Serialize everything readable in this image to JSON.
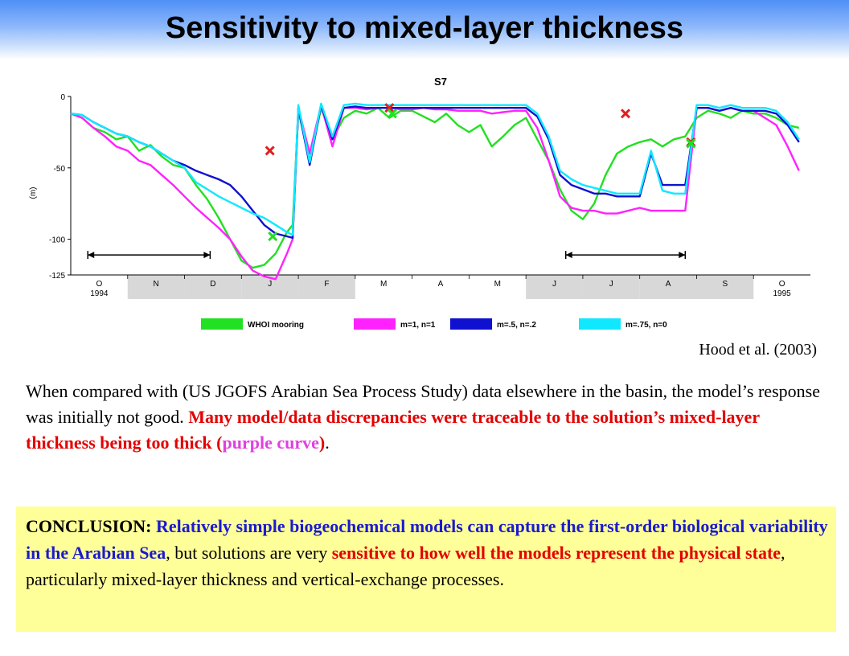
{
  "title": "Sensitivity to mixed-layer thickness",
  "citation": "Hood et al. (2003)",
  "paragraph": {
    "part1": "When compared with (US JGOFS Arabian Sea Process Study) data elsewhere in the basin, the model’s response was initially not good.  ",
    "part2": "Many model/data discrepancies were traceable to the solution’s mixed-layer thickness being too thick (",
    "part3": "purple curve",
    "part4": ")",
    "part5": "."
  },
  "conclusion": {
    "label": "CONCLUSION: ",
    "part1": "Relatively simple biogeochemical models can capture the first-order biological variability in the Arabian Sea",
    "part2": ", but solutions are very ",
    "part3": "sensitive to how well the models represent the physical state",
    "part4": ", particularly mixed-layer thickness and vertical-exchange processes."
  },
  "colors": {
    "whoi": "#22e022",
    "m1n1": "#ff22ff",
    "m05n02": "#1010d0",
    "m075n0": "#10e8ff",
    "markers": "#e02020",
    "emphasis_red": "#e30000",
    "emphasis_blue": "#1a1ad0",
    "conclusion_bg": "#ffff99"
  },
  "chart_data": {
    "type": "line",
    "title": "S7",
    "ylabel": "(m)",
    "ylim": [
      -125,
      0
    ],
    "yticks": [
      0,
      -50,
      -100,
      -125
    ],
    "ytick_labels": [
      "0",
      "-50",
      "-100",
      "-125"
    ],
    "x_axis": {
      "months": [
        "O",
        "N",
        "D",
        "J",
        "F",
        "M",
        "A",
        "M",
        "J",
        "J",
        "A",
        "S",
        "O"
      ],
      "shaded": [
        false,
        true,
        true,
        true,
        true,
        false,
        false,
        false,
        true,
        true,
        true,
        true,
        false
      ],
      "year_labels": [
        {
          "month_index": 0,
          "text": "1994"
        },
        {
          "month_index": 12,
          "text": "1995"
        }
      ]
    },
    "x": [
      0,
      0.2,
      0.4,
      0.6,
      0.8,
      1.0,
      1.2,
      1.4,
      1.6,
      1.8,
      2.0,
      2.2,
      2.4,
      2.6,
      2.8,
      3.0,
      3.2,
      3.4,
      3.6,
      3.8,
      3.9,
      4.0,
      4.2,
      4.4,
      4.6,
      4.8,
      5.0,
      5.2,
      5.4,
      5.6,
      5.8,
      6.0,
      6.2,
      6.4,
      6.6,
      6.8,
      7.0,
      7.2,
      7.4,
      7.6,
      7.8,
      8.0,
      8.2,
      8.4,
      8.6,
      8.8,
      9.0,
      9.2,
      9.4,
      9.6,
      9.8,
      10.0,
      10.2,
      10.4,
      10.6,
      10.8,
      11.0,
      11.2,
      11.4,
      11.6,
      11.8,
      12.0,
      12.2,
      12.4,
      12.6,
      12.8
    ],
    "series": [
      {
        "name": "WHOI mooring",
        "values": [
          -12,
          -15,
          -22,
          -25,
          -30,
          -28,
          -38,
          -34,
          -42,
          -48,
          -50,
          -62,
          -72,
          -85,
          -100,
          -115,
          -120,
          -118,
          -110,
          -95,
          -90,
          -10,
          -45,
          -8,
          -30,
          -15,
          -10,
          -12,
          -8,
          -15,
          -10,
          -10,
          -14,
          -18,
          -12,
          -20,
          -25,
          -20,
          -35,
          -28,
          -20,
          -15,
          -30,
          -45,
          -65,
          -80,
          -86,
          -75,
          -55,
          -40,
          -35,
          -32,
          -30,
          -35,
          -30,
          -28,
          -15,
          -10,
          -12,
          -15,
          -10,
          -12,
          -12,
          -15,
          -20,
          -22
        ]
      },
      {
        "name": "m=1, n=1",
        "values": [
          -12,
          -15,
          -22,
          -28,
          -35,
          -38,
          -45,
          -48,
          -55,
          -62,
          -70,
          -78,
          -85,
          -92,
          -100,
          -112,
          -122,
          -126,
          -128,
          -110,
          -100,
          -8,
          -40,
          -6,
          -35,
          -8,
          -8,
          -9,
          -8,
          -8,
          -9,
          -9,
          -8,
          -9,
          -9,
          -10,
          -10,
          -10,
          -12,
          -11,
          -10,
          -10,
          -22,
          -45,
          -70,
          -78,
          -80,
          -80,
          -82,
          -82,
          -80,
          -78,
          -80,
          -80,
          -80,
          -80,
          -8,
          -8,
          -10,
          -8,
          -10,
          -10,
          -15,
          -20,
          -35,
          -52
        ]
      },
      {
        "name": "m=.5, n=.2",
        "values": [
          -12,
          -13,
          -18,
          -22,
          -26,
          -28,
          -32,
          -35,
          -40,
          -45,
          -48,
          -52,
          -55,
          -58,
          -62,
          -70,
          -80,
          -90,
          -96,
          -98,
          -99,
          -8,
          -48,
          -6,
          -30,
          -8,
          -7,
          -8,
          -8,
          -8,
          -8,
          -8,
          -8,
          -8,
          -8,
          -8,
          -8,
          -8,
          -8,
          -8,
          -8,
          -8,
          -14,
          -30,
          -55,
          -62,
          -65,
          -68,
          -68,
          -70,
          -70,
          -70,
          -40,
          -62,
          -62,
          -62,
          -8,
          -8,
          -10,
          -8,
          -10,
          -10,
          -10,
          -12,
          -20,
          -32
        ]
      },
      {
        "name": "m=.75, n=0",
        "values": [
          -12,
          -13,
          -18,
          -22,
          -26,
          -28,
          -32,
          -35,
          -40,
          -45,
          -50,
          -60,
          -65,
          -70,
          -74,
          -78,
          -82,
          -85,
          -90,
          -95,
          -97,
          -6,
          -46,
          -5,
          -28,
          -6,
          -5,
          -6,
          -6,
          -6,
          -6,
          -6,
          -6,
          -6,
          -6,
          -6,
          -6,
          -6,
          -6,
          -6,
          -6,
          -6,
          -12,
          -28,
          -52,
          -58,
          -62,
          -64,
          -66,
          -68,
          -68,
          -68,
          -38,
          -66,
          -68,
          -68,
          -6,
          -6,
          -8,
          -6,
          -8,
          -8,
          -8,
          -10,
          -18,
          -30
        ]
      }
    ],
    "markers": [
      {
        "x": 3.5,
        "y": -38
      },
      {
        "x": 5.6,
        "y": -8
      },
      {
        "x": 9.75,
        "y": -12
      },
      {
        "x": 10.9,
        "y": -32
      }
    ],
    "green_markers": [
      {
        "x": 5.65,
        "y": -12
      },
      {
        "x": 10.9,
        "y": -33
      },
      {
        "x": 3.55,
        "y": -98
      }
    ],
    "range_arrows": [
      {
        "from": 0.3,
        "to": 2.45,
        "y": -111
      },
      {
        "from": 8.7,
        "to": 10.8,
        "y": -111
      }
    ]
  }
}
